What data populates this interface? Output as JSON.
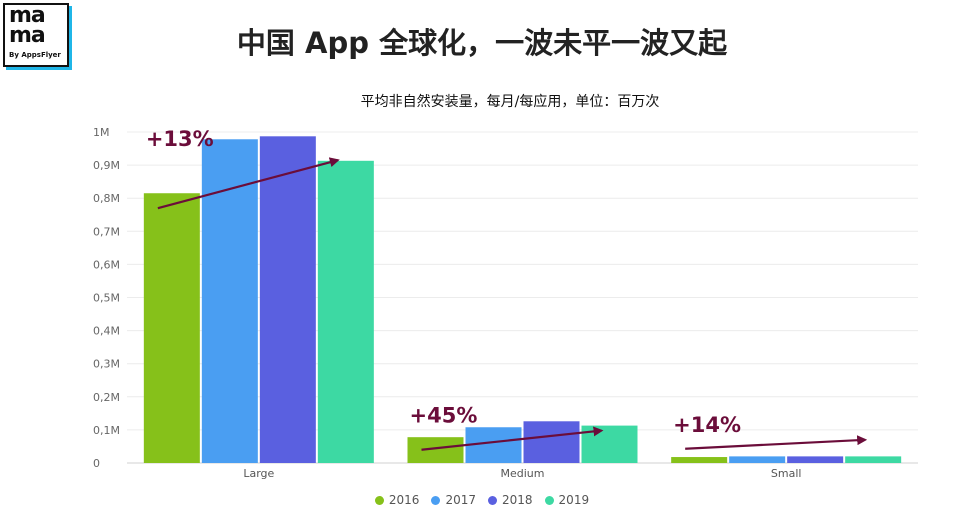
{
  "logo": {
    "line1": "ma",
    "line2": "ma",
    "sub": "By AppsFlyer"
  },
  "chart_data": {
    "type": "bar",
    "title": "中国 App 全球化，一波未平一波又起",
    "subtitle": "平均非自然安装量，每月/每应用，单位：百万次",
    "categories": [
      "Large",
      "Medium",
      "Small"
    ],
    "series": [
      {
        "name": "2016",
        "color": "#86c11a",
        "values": [
          0.815,
          0.078,
          0.018
        ]
      },
      {
        "name": "2017",
        "color": "#4a9ef2",
        "values": [
          0.978,
          0.108,
          0.02
        ]
      },
      {
        "name": "2018",
        "color": "#5a60e0",
        "values": [
          0.987,
          0.126,
          0.02
        ]
      },
      {
        "name": "2019",
        "color": "#3dd9a3",
        "values": [
          0.913,
          0.113,
          0.02
        ]
      }
    ],
    "ylim": [
      0,
      1.0
    ],
    "yticks": [
      {
        "value": 1.0,
        "label": "1M"
      },
      {
        "value": 0.9,
        "label": "0,9M"
      },
      {
        "value": 0.8,
        "label": "0,8M"
      },
      {
        "value": 0.7,
        "label": "0,7M"
      },
      {
        "value": 0.6,
        "label": "0,6M"
      },
      {
        "value": 0.5,
        "label": "0,5M"
      },
      {
        "value": 0.4,
        "label": "0,4M"
      },
      {
        "value": 0.3,
        "label": "0,3M"
      },
      {
        "value": 0.2,
        "label": "0,2M"
      },
      {
        "value": 0.1,
        "label": "0,1M"
      },
      {
        "value": 0.0,
        "label": "0"
      }
    ],
    "grid": true,
    "legend_position": "bottom",
    "annotations": [
      {
        "category": "Large",
        "text": "+13%",
        "from_value": 0.77,
        "to_value": 0.915
      },
      {
        "category": "Medium",
        "text": "+45%",
        "from_value": 0.04,
        "to_value": 0.098
      },
      {
        "category": "Small",
        "text": "+14%",
        "from_value": 0.043,
        "to_value": 0.07
      }
    ],
    "annotation_color": "#6b0d3a"
  }
}
